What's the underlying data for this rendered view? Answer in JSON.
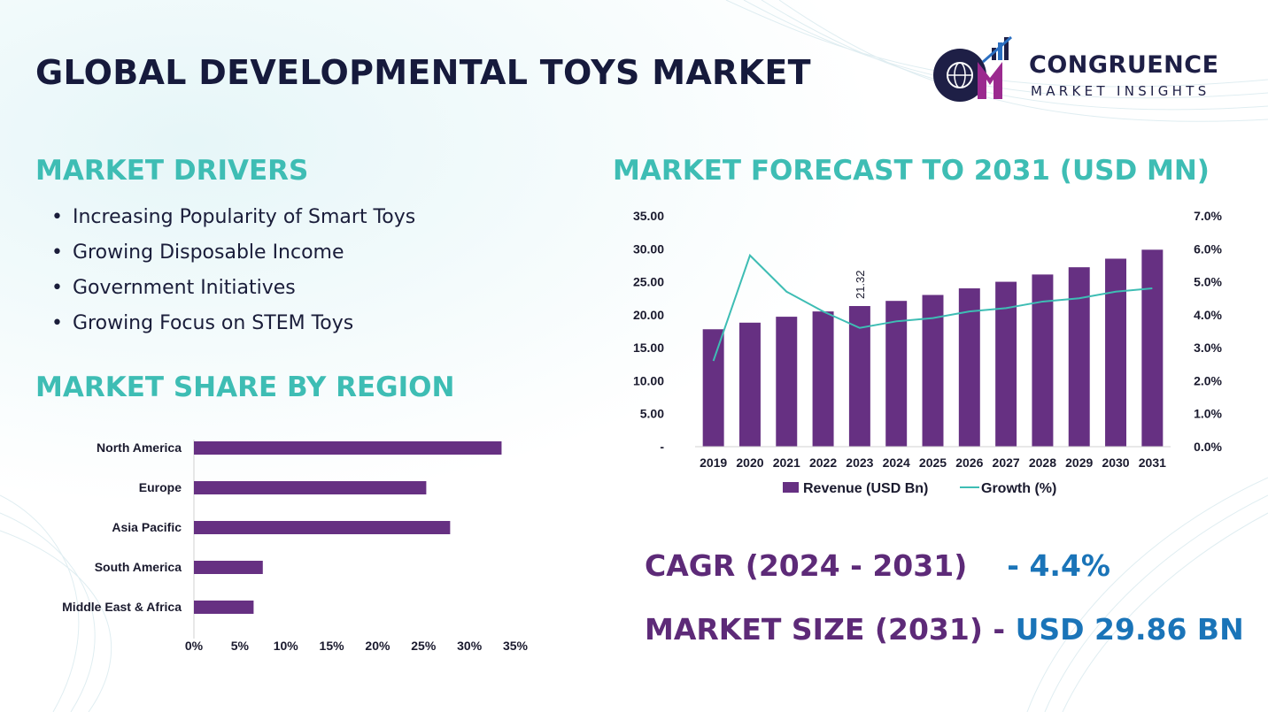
{
  "title": "GLOBAL DEVELOPMENTAL TOYS MARKET",
  "logo": {
    "line1": "CONGRUENCE",
    "line2": "MARKET INSIGHTS"
  },
  "drivers": {
    "heading": "MARKET DRIVERS",
    "items": [
      "Increasing Popularity of Smart Toys",
      "Growing Disposable Income",
      "Government Initiatives",
      "Growing Focus on STEM Toys"
    ]
  },
  "colors": {
    "bar": "#663082",
    "line": "#3ebdb4",
    "heading": "#3ebdb4",
    "title": "#161a3c",
    "value": "#1a74b8",
    "label": "#5d2a78"
  },
  "stats": {
    "cagr_label": "CAGR (2024 - 2031)",
    "cagr_value": "- 4.4%",
    "size_label": "MARKET SIZE (2031) -",
    "size_value": "USD 29.86 BN"
  },
  "chart_data": [
    {
      "type": "bar",
      "orientation": "horizontal",
      "title": "MARKET SHARE BY REGION",
      "categories": [
        "North America",
        "Europe",
        "Asia Pacific",
        "South America",
        "Middle East & Africa"
      ],
      "values": [
        33.5,
        25.3,
        27.9,
        7.5,
        6.5
      ],
      "unit": "%",
      "xlim": [
        0,
        35
      ],
      "xticks": [
        "0%",
        "5%",
        "10%",
        "15%",
        "20%",
        "25%",
        "30%",
        "35%"
      ],
      "grid": false
    },
    {
      "type": "bar+line",
      "title": "MARKET FORECAST TO 2031 (USD MN)",
      "categories": [
        "2019",
        "2020",
        "2021",
        "2022",
        "2023",
        "2024",
        "2025",
        "2026",
        "2027",
        "2028",
        "2029",
        "2030",
        "2031"
      ],
      "series": [
        {
          "name": "Revenue (USD Bn)",
          "type": "bar",
          "axis": "left",
          "values": [
            17.8,
            18.8,
            19.7,
            20.5,
            21.32,
            22.1,
            23.0,
            24.0,
            25.0,
            26.1,
            27.2,
            28.5,
            29.86
          ]
        },
        {
          "name": "Growth (%)",
          "type": "line",
          "axis": "right",
          "values": [
            2.6,
            5.8,
            4.7,
            4.1,
            3.6,
            3.8,
            3.9,
            4.1,
            4.2,
            4.4,
            4.5,
            4.7,
            4.8
          ]
        }
      ],
      "data_labels": [
        {
          "category": "2023",
          "text": "21.32"
        }
      ],
      "ylim_left": [
        0,
        35
      ],
      "yticks_left": [
        "-",
        "5.00",
        "10.00",
        "15.00",
        "20.00",
        "25.00",
        "30.00",
        "35.00"
      ],
      "ylim_right": [
        0,
        7
      ],
      "yticks_right": [
        "0.0%",
        "1.0%",
        "2.0%",
        "3.0%",
        "4.0%",
        "5.0%",
        "6.0%",
        "7.0%"
      ],
      "legend": "bottom",
      "grid": false
    }
  ]
}
